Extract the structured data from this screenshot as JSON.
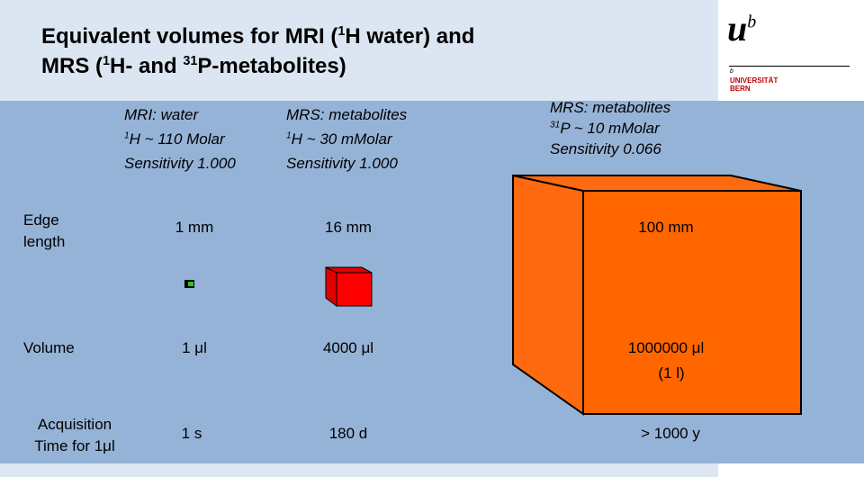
{
  "header": {
    "title_lines": [
      [
        {
          "text": "Equivalent volumes for MRI (",
          "sup": false
        },
        {
          "text": "1",
          "sup": true
        },
        {
          "text": "H water) and",
          "sup": false
        }
      ],
      [
        {
          "text": "MRS (",
          "sup": false
        },
        {
          "text": "1",
          "sup": true
        },
        {
          "text": "H- and ",
          "sup": false
        },
        {
          "text": "31",
          "sup": true
        },
        {
          "text": "P-metabolites)",
          "sup": false
        }
      ]
    ]
  },
  "logo": {
    "mark": "u",
    "mark_sup": "b",
    "small": "b",
    "name_lines": [
      "UNIVERSITÄT",
      "BERN"
    ]
  },
  "columns": [
    {
      "heading": "MRI: water",
      "nucleus_sup": "1",
      "nucleus": "H  ~ 110 Molar",
      "sensitivity": "Sensitivity 1.000"
    },
    {
      "heading": "MRS: metabolites",
      "nucleus_sup": "1",
      "nucleus": "H ~ 30 mMolar",
      "sensitivity": "Sensitivity 1.000"
    },
    {
      "heading": "MRS: metabolites",
      "nucleus_sup": "31",
      "nucleus": "P ~ 10 mMolar",
      "sensitivity": "Sensitivity 0.066"
    }
  ],
  "rows": [
    {
      "label": "Edge length",
      "values": [
        "1 mm",
        "16 mm",
        "100 mm"
      ]
    },
    {
      "label": "Volume",
      "values": [
        "1 μl",
        "4000 μl",
        "1000000 μl"
      ],
      "note": "(1 l)"
    },
    {
      "label": "Acquisition Time for 1μl",
      "values": [
        "1 s",
        "180 d",
        "> 1000 y"
      ]
    }
  ]
}
